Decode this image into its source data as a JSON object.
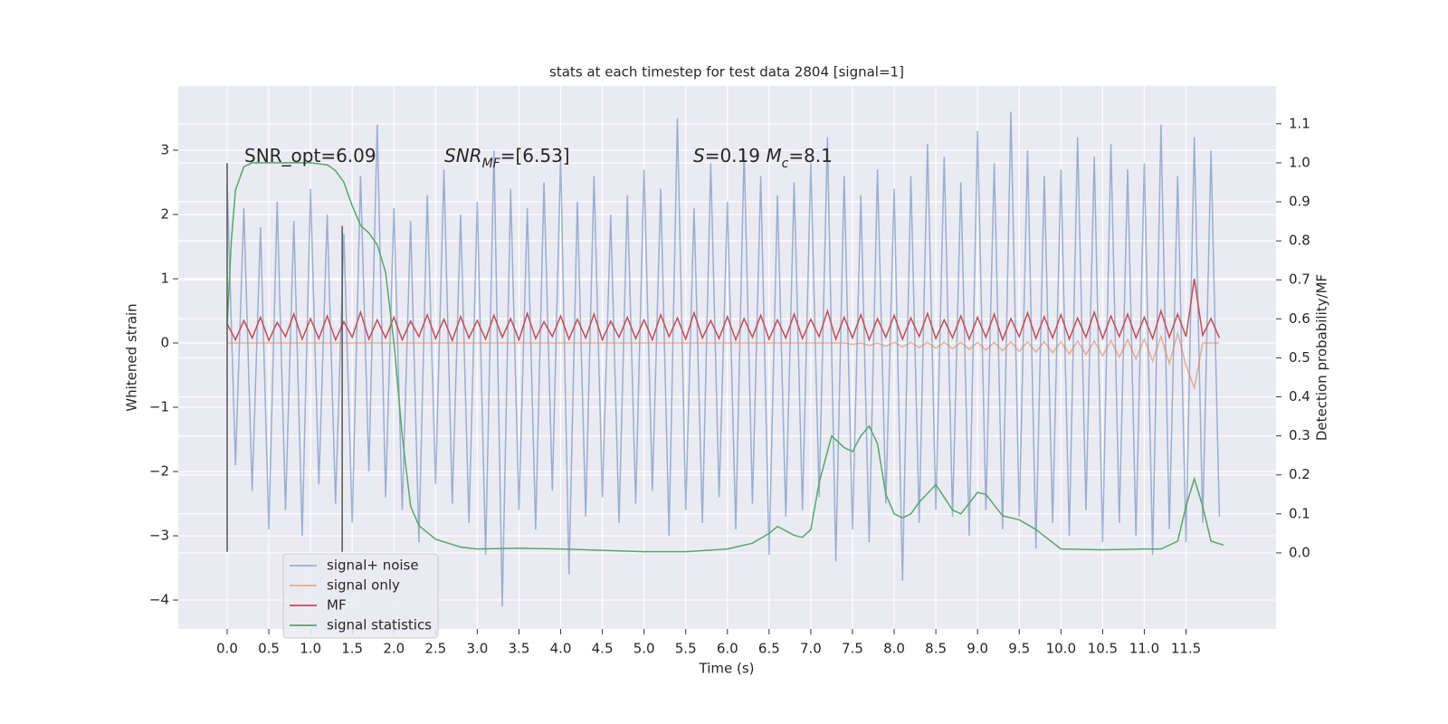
{
  "chart_data": {
    "type": "line",
    "title": "stats at each timestep for test data 2804 [signal=1]",
    "xlabel": "Time (s)",
    "ylabel": "Whitened strain",
    "y2label": "Detection probability/MF",
    "xlim": [
      -0.586,
      12.58
    ],
    "ylim": [
      -4.45,
      4.0
    ],
    "y2lim": [
      -0.195,
      1.197
    ],
    "xticks": [
      {
        "value": 0,
        "label": "0.0"
      },
      0.5,
      {
        "value": 1,
        "label": "1.0"
      },
      1.5,
      {
        "value": 2,
        "label": "2.0"
      },
      2.5,
      {
        "value": 3,
        "label": "3.0"
      },
      3.5,
      {
        "value": 4,
        "label": "4.0"
      },
      4.5,
      {
        "value": 5,
        "label": "5.0"
      },
      5.5,
      {
        "value": 6,
        "label": "6.0"
      },
      6.5,
      {
        "value": 7,
        "label": "7.0"
      },
      7.5,
      {
        "value": 8,
        "label": "8.0"
      },
      8.5,
      {
        "value": 9,
        "label": "9.0"
      },
      9.5,
      {
        "value": 10,
        "label": "10.0"
      },
      10.5,
      {
        "value": 11,
        "label": "11.0"
      },
      11.5
    ],
    "yticks": [
      {
        "value": -4,
        "label": "−4"
      },
      {
        "value": -3,
        "label": "−3"
      },
      {
        "value": -2,
        "label": "−2"
      },
      {
        "value": -1,
        "label": "−1"
      },
      0,
      1,
      2,
      3
    ],
    "y2ticks": [
      {
        "value": 0,
        "label": "0.0"
      },
      0.1,
      0.2,
      0.3,
      0.4,
      0.5,
      0.6,
      0.7,
      0.8,
      0.9,
      {
        "value": 1,
        "label": "1.0"
      },
      1.1
    ],
    "grid": true,
    "annotations": [
      [
        {
          "text": "SNR_opt=6.09"
        }
      ],
      [
        {
          "text": "SNR",
          "italic": true
        },
        {
          "text": "MF",
          "italic": true,
          "sub": true
        },
        {
          "text": "=[6.53]"
        }
      ],
      [
        {
          "text": "S",
          "italic": true
        },
        {
          "text": "=0.19   "
        },
        {
          "text": "M",
          "italic": true
        },
        {
          "text": "c",
          "italic": true,
          "sub": true
        },
        {
          "text": "=8.1"
        }
      ]
    ],
    "vlines": [
      {
        "x": 0,
        "ymin": -3.25,
        "ymax": 2.8,
        "color": "#555555"
      },
      {
        "x": 1.38,
        "ymin": -3.25,
        "ymax": 1.82,
        "color": "#555555"
      }
    ],
    "x": [
      0,
      0.1,
      0.2,
      0.3,
      0.4,
      0.5,
      0.6,
      0.7,
      0.8,
      0.9,
      1,
      1.1,
      1.2,
      1.3,
      1.4,
      1.5,
      1.6,
      1.7,
      1.8,
      1.9,
      2,
      2.1,
      2.2,
      2.3,
      2.4,
      2.5,
      2.6,
      2.7,
      2.8,
      2.9,
      3,
      3.1,
      3.2,
      3.3,
      3.4,
      3.5,
      3.6,
      3.7,
      3.8,
      3.9,
      4,
      4.1,
      4.2,
      4.3,
      4.4,
      4.5,
      4.6,
      4.7,
      4.8,
      4.9,
      5,
      5.1,
      5.2,
      5.3,
      5.4,
      5.5,
      5.6,
      5.7,
      5.8,
      5.9,
      6,
      6.1,
      6.2,
      6.3,
      6.4,
      6.5,
      6.6,
      6.7,
      6.8,
      6.9,
      7,
      7.1,
      7.2,
      7.3,
      7.4,
      7.5,
      7.6,
      7.7,
      7.8,
      7.9,
      8,
      8.1,
      8.2,
      8.3,
      8.4,
      8.5,
      8.6,
      8.7,
      8.8,
      8.9,
      9,
      9.1,
      9.2,
      9.3,
      9.4,
      9.5,
      9.6,
      9.7,
      9.8,
      9.9,
      10,
      10.1,
      10.2,
      10.3,
      10.4,
      10.5,
      10.6,
      10.7,
      10.8,
      10.9,
      11,
      11.1,
      11.2,
      11.3,
      11.4,
      11.5,
      11.6,
      11.7,
      11.8,
      11.9
    ],
    "legend": "lower left",
    "series": [
      {
        "name": "signal+ noise",
        "color": "#4c72b0",
        "opacity": 0.5,
        "values": [
          2.5,
          -1.9,
          2.1,
          -2.3,
          1.8,
          -2.9,
          2.2,
          -2.6,
          1.9,
          -3.0,
          2.4,
          -2.2,
          2.0,
          -2.5,
          1.7,
          -2.8,
          2.6,
          -2.0,
          3.4,
          -2.4,
          2.1,
          -2.6,
          1.9,
          -3.1,
          2.3,
          -2.2,
          2.7,
          -2.5,
          2.0,
          -2.8,
          2.2,
          -3.3,
          3.0,
          -4.1,
          2.4,
          -2.6,
          2.1,
          -2.9,
          2.5,
          -2.3,
          2.9,
          -3.6,
          2.2,
          -2.7,
          2.6,
          -2.4,
          2.0,
          -2.8,
          2.3,
          -2.5,
          2.7,
          -2.3,
          2.4,
          -3.0,
          3.5,
          -2.6,
          2.1,
          -2.8,
          2.8,
          -2.4,
          2.2,
          -2.9,
          3.0,
          -2.5,
          2.6,
          -3.3,
          2.3,
          -2.7,
          2.5,
          -2.6,
          2.8,
          -2.4,
          3.2,
          -3.4,
          2.6,
          -2.9,
          2.3,
          -3.1,
          2.7,
          -2.5,
          2.4,
          -3.7,
          2.6,
          -2.8,
          3.1,
          -2.6,
          2.9,
          -2.7,
          2.5,
          -3.0,
          3.3,
          -2.6,
          2.8,
          -2.9,
          3.6,
          -2.7,
          3.0,
          -3.2,
          2.6,
          -2.8,
          2.7,
          -3.0,
          3.2,
          -2.6,
          2.9,
          -3.1,
          3.1,
          -2.8,
          2.7,
          -3.0,
          2.8,
          -3.3,
          3.4,
          -2.9,
          2.6,
          -3.1,
          3.2,
          -2.8,
          3.0,
          -2.7
        ]
      },
      {
        "name": "signal only",
        "color": "#dd8452",
        "opacity": 0.6,
        "values": [
          0,
          0,
          0,
          0,
          0,
          0,
          0,
          0,
          0,
          0,
          0,
          0,
          0,
          0,
          0,
          0,
          0,
          0,
          0,
          0,
          0,
          0,
          0,
          0,
          0,
          0,
          0,
          0,
          0,
          0,
          0,
          0,
          0,
          0,
          0,
          0,
          0,
          0,
          0,
          0,
          0,
          0,
          0,
          0,
          0,
          0,
          0,
          0,
          0,
          0,
          0,
          0,
          0,
          0,
          0,
          0,
          0,
          0,
          0,
          0,
          0,
          0,
          0,
          0,
          0,
          0,
          0,
          0,
          0,
          0,
          0,
          0,
          0,
          0,
          0,
          -0.02,
          0.0,
          -0.04,
          0.0,
          -0.05,
          0.01,
          -0.06,
          0.01,
          -0.07,
          0.01,
          -0.08,
          0.01,
          -0.09,
          0.01,
          -0.1,
          0.01,
          -0.11,
          0.01,
          -0.12,
          0.02,
          -0.13,
          0.02,
          -0.14,
          0.02,
          -0.15,
          0.02,
          -0.17,
          0.03,
          -0.18,
          0.03,
          -0.2,
          0.04,
          -0.22,
          0.05,
          -0.25,
          0.06,
          -0.28,
          0.1,
          -0.32,
          0.15,
          -0.35,
          -0.7,
          0.0,
          0.0,
          0.0
        ]
      },
      {
        "name": "MF",
        "color": "#c44e52",
        "opacity": 1,
        "values": [
          0.3,
          0.05,
          0.35,
          0.08,
          0.4,
          0.04,
          0.32,
          0.1,
          0.45,
          0.06,
          0.38,
          0.07,
          0.42,
          0.05,
          0.33,
          0.09,
          0.48,
          0.06,
          0.36,
          0.08,
          0.4,
          0.05,
          0.34,
          0.1,
          0.44,
          0.07,
          0.37,
          0.04,
          0.41,
          0.08,
          0.35,
          0.06,
          0.43,
          0.09,
          0.38,
          0.05,
          0.46,
          0.07,
          0.33,
          0.1,
          0.42,
          0.06,
          0.37,
          0.08,
          0.45,
          0.05,
          0.34,
          0.09,
          0.4,
          0.07,
          0.36,
          0.05,
          0.44,
          0.1,
          0.39,
          0.06,
          0.47,
          0.08,
          0.35,
          0.07,
          0.41,
          0.05,
          0.38,
          0.09,
          0.43,
          0.06,
          0.36,
          0.08,
          0.45,
          0.07,
          0.37,
          0.1,
          0.5,
          0.06,
          0.4,
          0.08,
          0.44,
          0.05,
          0.38,
          0.09,
          0.43,
          0.06,
          0.39,
          0.1,
          0.46,
          0.07,
          0.36,
          0.08,
          0.42,
          0.06,
          0.4,
          0.09,
          0.45,
          0.05,
          0.38,
          0.1,
          0.47,
          0.07,
          0.41,
          0.08,
          0.44,
          0.06,
          0.39,
          0.09,
          0.48,
          0.07,
          0.42,
          0.1,
          0.45,
          0.08,
          0.4,
          0.07,
          0.5,
          0.09,
          0.45,
          0.1,
          1.0,
          0.12,
          0.38,
          0.08
        ]
      },
      {
        "name": "signal statistics",
        "color": "#55a868",
        "opacity": 1,
        "axis": "y2",
        "x": [
          0,
          0.05,
          0.1,
          0.2,
          0.3,
          0.5,
          1.0,
          1.2,
          1.3,
          1.4,
          1.5,
          1.6,
          1.7,
          1.8,
          1.9,
          2.0,
          2.1,
          2.2,
          2.3,
          2.5,
          2.8,
          3.0,
          3.5,
          4.0,
          5.0,
          5.5,
          6.0,
          6.3,
          6.5,
          6.6,
          6.8,
          6.9,
          7.0,
          7.1,
          7.25,
          7.4,
          7.5,
          7.6,
          7.7,
          7.8,
          7.9,
          8.0,
          8.1,
          8.2,
          8.3,
          8.5,
          8.7,
          8.8,
          9.0,
          9.1,
          9.3,
          9.5,
          9.7,
          10.0,
          10.5,
          11.0,
          11.2,
          11.4,
          11.5,
          11.6,
          11.7,
          11.8,
          11.95
        ],
        "values": [
          0.58,
          0.8,
          0.93,
          0.99,
          1.0,
          1.0,
          1.0,
          0.995,
          0.98,
          0.95,
          0.89,
          0.84,
          0.82,
          0.79,
          0.72,
          0.54,
          0.3,
          0.12,
          0.07,
          0.035,
          0.015,
          0.01,
          0.012,
          0.01,
          0.003,
          0.003,
          0.01,
          0.025,
          0.05,
          0.068,
          0.045,
          0.04,
          0.06,
          0.18,
          0.3,
          0.27,
          0.26,
          0.3,
          0.325,
          0.28,
          0.15,
          0.1,
          0.09,
          0.1,
          0.13,
          0.175,
          0.11,
          0.1,
          0.155,
          0.15,
          0.095,
          0.085,
          0.06,
          0.01,
          0.008,
          0.01,
          0.01,
          0.03,
          0.12,
          0.19,
          0.12,
          0.03,
          0.02
        ]
      }
    ]
  }
}
